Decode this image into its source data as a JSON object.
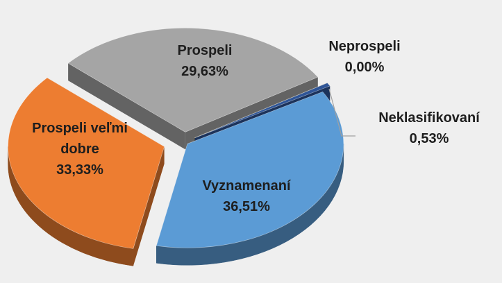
{
  "chart_data": {
    "type": "pie",
    "categories": [
      "Vyznamenaní",
      "Prospeli veľmi dobre",
      "Prospeli",
      "Neprospeli",
      "Neklasifikovaní"
    ],
    "values": [
      36.51,
      33.33,
      29.63,
      0.0,
      0.53
    ],
    "value_labels": [
      "36,51%",
      "33,33%",
      "29,63%",
      "0,00%",
      "0,53%"
    ],
    "colors": [
      "#5b9bd5",
      "#ed7d31",
      "#a5a5a5",
      "#ffc000",
      "#2f5597"
    ]
  }
}
